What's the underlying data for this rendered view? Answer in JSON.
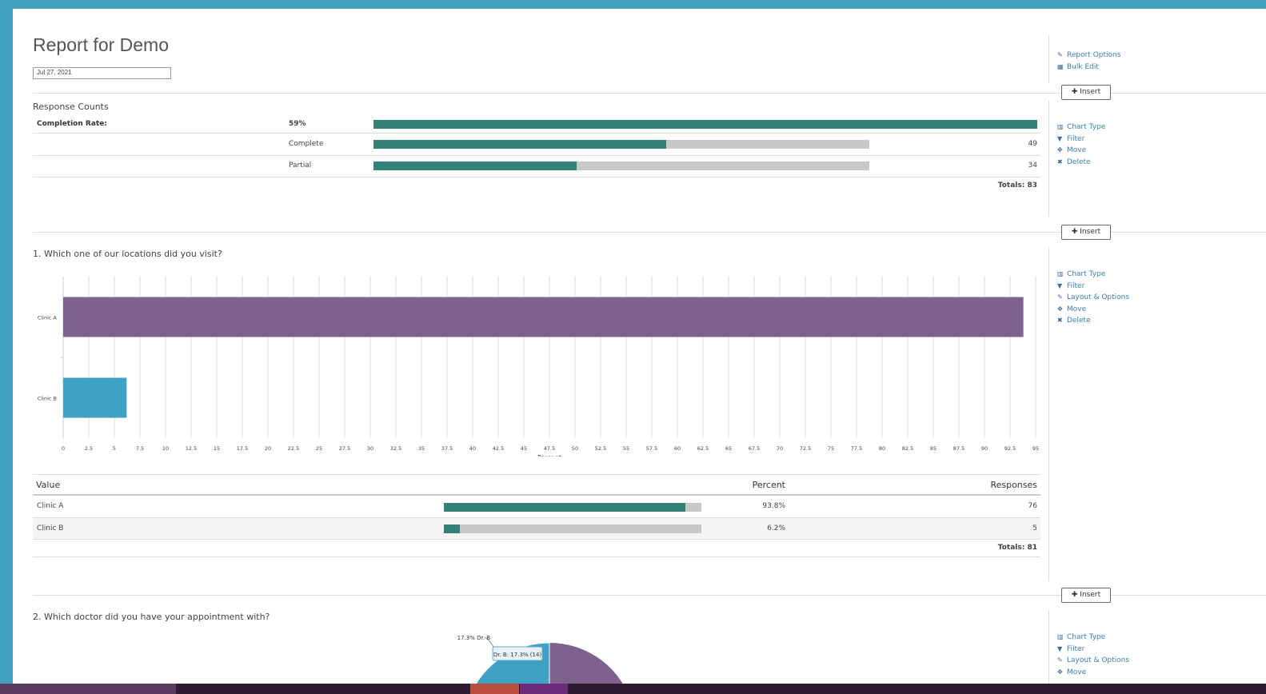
{
  "report": {
    "title": "Report for Demo",
    "date": "Jul 27, 2021"
  },
  "top_side": {
    "report_options": "Report Options",
    "bulk_edit": "Bulk Edit"
  },
  "insert_label": "Insert",
  "side_actions": {
    "chart_type": "Chart Type",
    "filter": "Filter",
    "layout": "Layout & Options",
    "move": "Move",
    "delete": "Delete"
  },
  "response_counts": {
    "title": "Response Counts",
    "completion_label": "Completion Rate:",
    "completion_rate": "59%",
    "completion_fraction": 0.59,
    "rows": [
      {
        "label": "Complete",
        "count": "49",
        "fraction": 0.59
      },
      {
        "label": "Partial",
        "count": "34",
        "fraction": 0.41
      }
    ],
    "totals": "Totals: 83"
  },
  "q1": {
    "title": "1. Which one of our locations did you visit?",
    "table": {
      "headers": [
        "Value",
        "Percent",
        "Responses"
      ],
      "rows": [
        {
          "value": "Clinic A",
          "percent": "93.8%",
          "fraction": 0.938,
          "responses": "76"
        },
        {
          "value": "Clinic B",
          "percent": "6.2%",
          "fraction": 0.062,
          "responses": "5"
        }
      ],
      "totals": "Totals: 81"
    }
  },
  "q2": {
    "title": "2. Which doctor did you have your appointment with?"
  },
  "chart_data": [
    {
      "type": "bar",
      "orientation": "horizontal",
      "categories": [
        "Clinic A",
        "Clinic B"
      ],
      "values": [
        93.8,
        6.2
      ],
      "colors": [
        "#7d618f",
        "#3fa1c5"
      ],
      "xlabel": "Percent",
      "xlim": [
        0,
        95
      ],
      "xtick_step": 2.5,
      "grid": true
    },
    {
      "type": "pie",
      "slices": [
        {
          "name": "Dr. B",
          "percent": 17.3,
          "count": 14,
          "color": "#3fa1c5"
        }
      ],
      "data_label": "17.3% Dr. B",
      "tooltip": "Dr. B: 17.3% (14)",
      "other_color": "#7d618f"
    }
  ],
  "colors": {
    "accent": "#3fa1be",
    "bar_fill": "#348078",
    "link": "#3a7fb5"
  }
}
